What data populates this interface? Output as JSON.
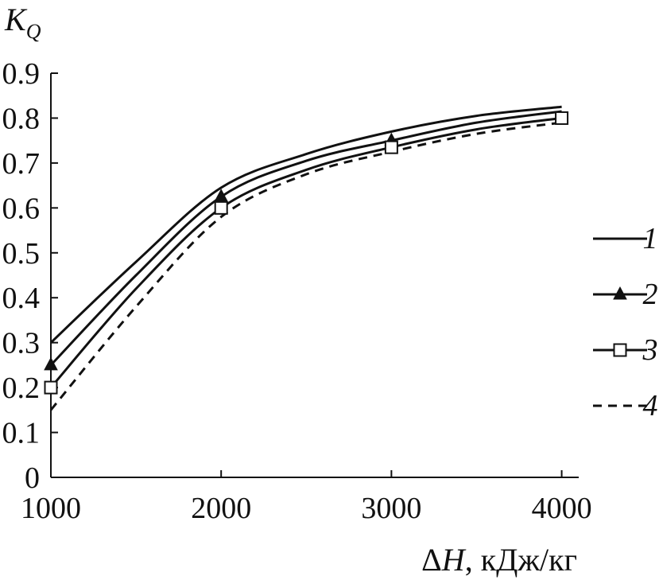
{
  "chart_data": {
    "type": "line",
    "ylabel": {
      "main": "K",
      "sub": "Q"
    },
    "xlabel": {
      "delta": "Δ",
      "var": "H",
      "unit": ", кДж/кг"
    },
    "xlim": [
      1000,
      4100
    ],
    "ylim": [
      0,
      0.9
    ],
    "x_ticks": [
      {
        "value": 1000,
        "label": "1000"
      },
      {
        "value": 2000,
        "label": "2000"
      },
      {
        "value": 3000,
        "label": "3000"
      },
      {
        "value": 4000,
        "label": "4000"
      }
    ],
    "y_ticks": [
      {
        "value": 0,
        "label": "0"
      },
      {
        "value": 0.1,
        "label": "0.1"
      },
      {
        "value": 0.2,
        "label": "0.2"
      },
      {
        "value": 0.3,
        "label": "0.3"
      },
      {
        "value": 0.4,
        "label": "0.4"
      },
      {
        "value": 0.5,
        "label": "0.5"
      },
      {
        "value": 0.6,
        "label": "0.6"
      },
      {
        "value": 0.7,
        "label": "0.7"
      },
      {
        "value": 0.8,
        "label": "0.8"
      },
      {
        "value": 0.9,
        "label": "0.9"
      }
    ],
    "grid": false,
    "legend_position": "right",
    "series": [
      {
        "name": "1",
        "style": "solid",
        "marker": "none",
        "color": "#111111",
        "x": [
          1000,
          1500,
          2000,
          2500,
          3000,
          3500,
          4000
        ],
        "y": [
          0.3,
          0.48,
          0.645,
          0.72,
          0.77,
          0.805,
          0.825
        ]
      },
      {
        "name": "2",
        "style": "solid",
        "marker": "triangle",
        "color": "#111111",
        "x": [
          1000,
          1500,
          2000,
          2500,
          3000,
          3500,
          4000
        ],
        "y": [
          0.25,
          0.45,
          0.625,
          0.705,
          0.75,
          0.79,
          0.815
        ],
        "marker_x": [
          1000,
          2000,
          3000
        ],
        "marker_y": [
          0.25,
          0.625,
          0.75
        ]
      },
      {
        "name": "3",
        "style": "solid",
        "marker": "square",
        "color": "#111111",
        "x": [
          1000,
          1500,
          2000,
          2500,
          3000,
          3500,
          4000
        ],
        "y": [
          0.2,
          0.42,
          0.6,
          0.685,
          0.735,
          0.775,
          0.8
        ],
        "marker_x": [
          1000,
          2000,
          3000,
          4000
        ],
        "marker_y": [
          0.2,
          0.6,
          0.735,
          0.8
        ]
      },
      {
        "name": "4",
        "style": "dashed",
        "marker": "none",
        "color": "#111111",
        "x": [
          1000,
          1500,
          2000,
          2500,
          3000,
          3500,
          4000
        ],
        "y": [
          0.15,
          0.38,
          0.58,
          0.675,
          0.725,
          0.765,
          0.79
        ]
      }
    ]
  }
}
